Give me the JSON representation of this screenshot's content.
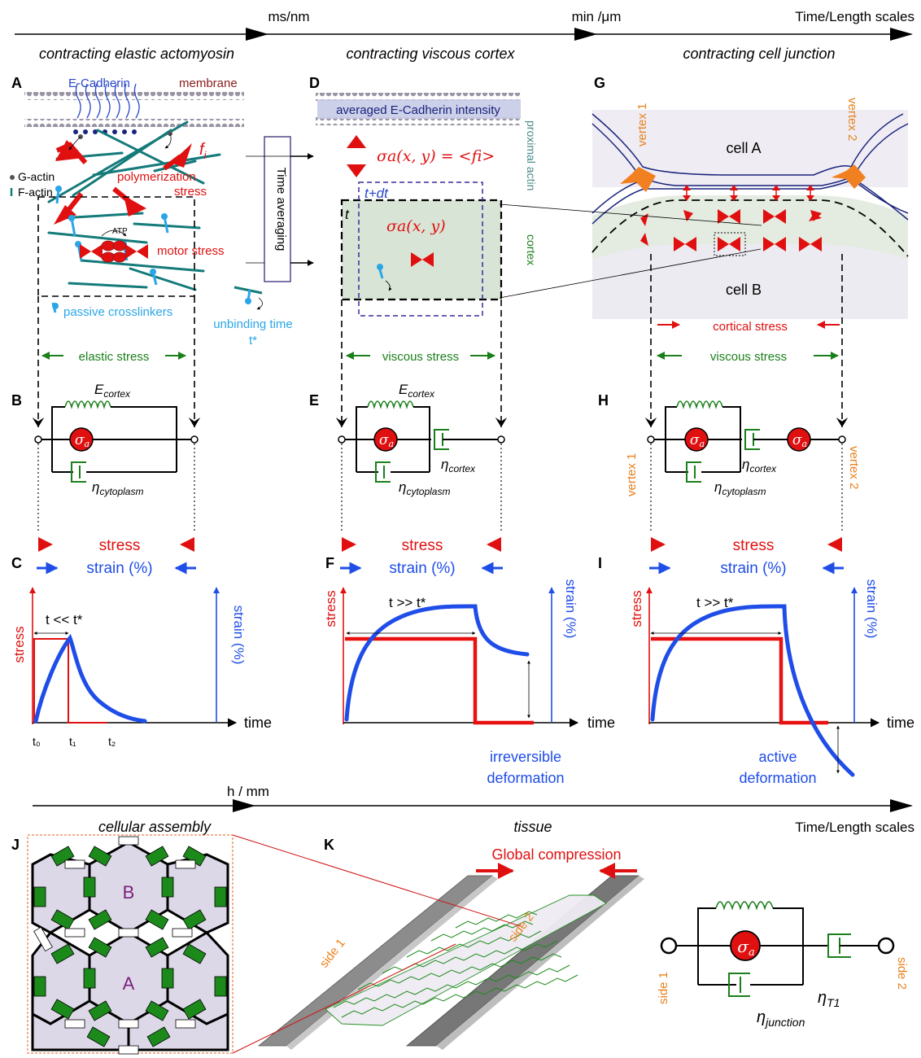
{
  "scale_bar_top": {
    "left": "ms/nm",
    "middle": "min /μm",
    "right": "Time/Length scales"
  },
  "column_titles": [
    "contracting elastic actomyosin",
    "contracting viscous cortex",
    "contracting cell junction"
  ],
  "panel_letters": {
    "A": "A",
    "B": "B",
    "C": "C",
    "D": "D",
    "E": "E",
    "F": "F",
    "G": "G",
    "H": "H",
    "I": "I",
    "J": "J",
    "K": "K"
  },
  "panel_a": {
    "ecadherin": "E-Cadherin",
    "membrane": "membrane",
    "fi_label": "f",
    "fi_sub": "i",
    "g_actin": "G-actin",
    "f_actin": "F-actin",
    "polymerization": "polymerization",
    "stress": "stress",
    "atp": "ATP",
    "motor_stress": "motor stress",
    "passive_crosslinkers": "passive crosslinkers",
    "unbinding_time": "unbinding time",
    "t_star": "t*"
  },
  "time_averaging": "Time averaging",
  "panel_d": {
    "averaged": "averaged E-Cadherin intensity",
    "sigma_avg": "σa(x, y) = <fi>",
    "t_dt": "t+dt",
    "t": "t",
    "sigma_local": "σa(x, y)",
    "proximal_actin": "proximal actin",
    "cortex": "cortex"
  },
  "panel_g": {
    "vertex1": "vertex 1",
    "vertex2": "vertex 2",
    "cell_a": "cell A",
    "cell_b": "cell B",
    "cortical_stress": "cortical stress"
  },
  "stress_labels": {
    "elastic": "elastic stress",
    "viscous": "viscous stress"
  },
  "circuit": {
    "E": "E",
    "cortex_sub": "cortex",
    "eta": "η",
    "cytoplasm_sub": "cytoplasm",
    "sigma": "σ",
    "a_sub": "a",
    "vertex1": "vertex 1",
    "vertex2": "vertex 2"
  },
  "stress_strain": {
    "stress": "stress",
    "strain": "strain (%)"
  },
  "graphs": {
    "stress_axis": "stress",
    "strain_axis": "strain (%)",
    "time": "time",
    "c_note": "t << t*",
    "f_note": "t >> t*",
    "i_note": "t >> t*",
    "t0": "t₀",
    "t1": "t₁",
    "t2": "t₂",
    "irreversible_1": "irreversible",
    "irreversible_2": "deformation",
    "active_1": "active",
    "active_2": "deformation"
  },
  "scale_bar_bottom": {
    "left": "h / mm",
    "right": "Time/Length scales",
    "cellular": "cellular assembly",
    "tissue": "tissue"
  },
  "panel_j": {
    "cell_b": "B",
    "cell_a": "A"
  },
  "panel_k": {
    "global_compression": "Global compression",
    "side1": "side 1",
    "side2": "side 2"
  },
  "right_model": {
    "side1": "side 1",
    "side2": "side 2",
    "eta": "η",
    "t1_sub": "T1",
    "junction_sub": "junction"
  },
  "colors": {
    "red": "#e01010",
    "blue": "#1f4de8",
    "green": "#1b7f1b",
    "orange": "#e8821e",
    "teal": "#147a7a",
    "navy": "#1a237e",
    "maroon": "#8b1a1a",
    "purple": "#7a1f7a"
  }
}
